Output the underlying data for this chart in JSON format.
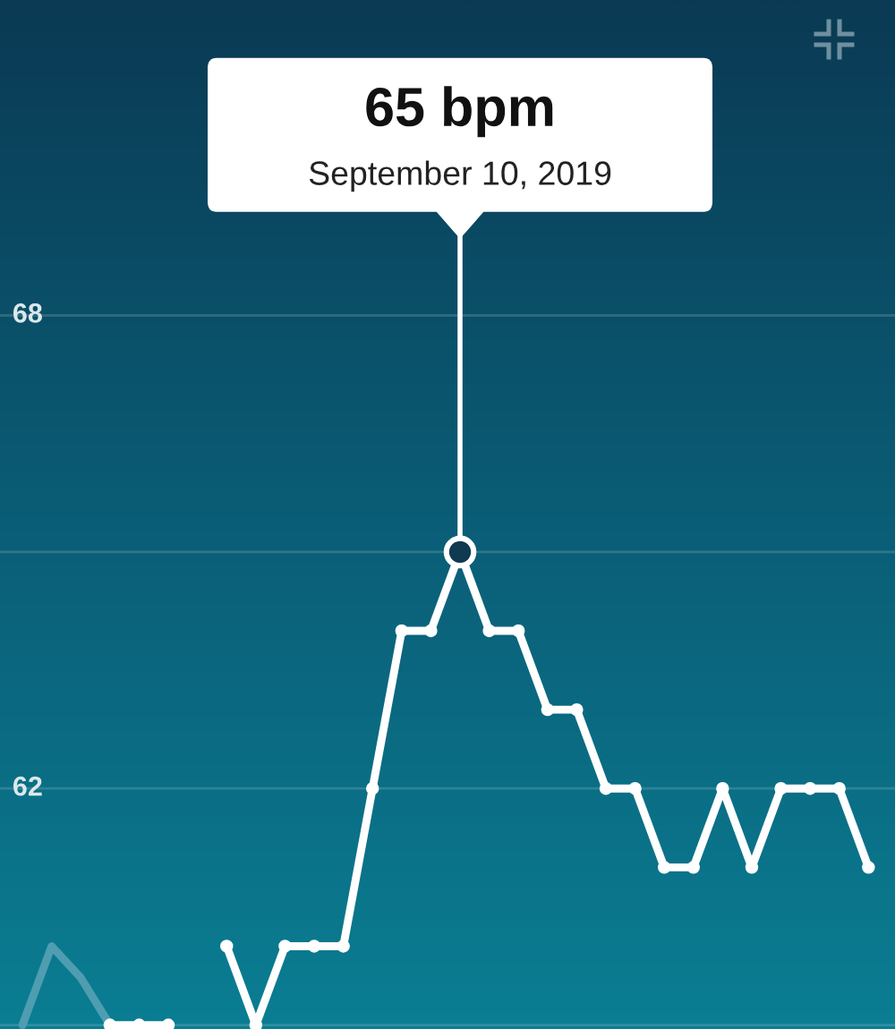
{
  "chart_data": {
    "type": "line",
    "categories": [
      null,
      null,
      null,
      null,
      null,
      null,
      null,
      null,
      null,
      null,
      null,
      null,
      null,
      null,
      null,
      null,
      null,
      null,
      null,
      null,
      null,
      null,
      null,
      null,
      null,
      null,
      null,
      null,
      null,
      null
    ],
    "series": [
      {
        "type": "line",
        "color": "#4f9db1",
        "marker": "none",
        "values": [
          59,
          60,
          59.6,
          59,
          null,
          null,
          null,
          null,
          null,
          null,
          null,
          null,
          null,
          null,
          null,
          null,
          null,
          null,
          null,
          null,
          null,
          null,
          null,
          null,
          null,
          null,
          null,
          null,
          null,
          null
        ]
      },
      {
        "color": "#ffffff",
        "values": [
          null,
          null,
          null,
          59,
          59,
          59,
          null,
          null,
          null,
          null,
          null,
          null,
          null,
          null,
          null,
          null,
          null,
          null,
          null,
          null,
          null,
          null,
          null,
          null,
          null,
          null,
          null,
          null,
          null,
          null
        ]
      },
      {
        "color": "#ffffff",
        "values": [
          null,
          null,
          null,
          null,
          null,
          null,
          null,
          60,
          59,
          60,
          60,
          60,
          62,
          64,
          64,
          65,
          64,
          64,
          63,
          63,
          62,
          62,
          61,
          61,
          62,
          61,
          62,
          62,
          62,
          61
        ]
      }
    ],
    "ylim": [
      58.95,
      72
    ],
    "yticks": [
      {
        "value": 59,
        "label": null
      },
      62,
      {
        "value": 65,
        "label": null
      },
      68
    ],
    "grid": "y",
    "marker": "circle",
    "line_style": "solid",
    "tick_labels": "y",
    "annotations": [
      "65 bpm",
      {
        "text": "September 10, 2019",
        "y": 65
      }
    ]
  }
}
